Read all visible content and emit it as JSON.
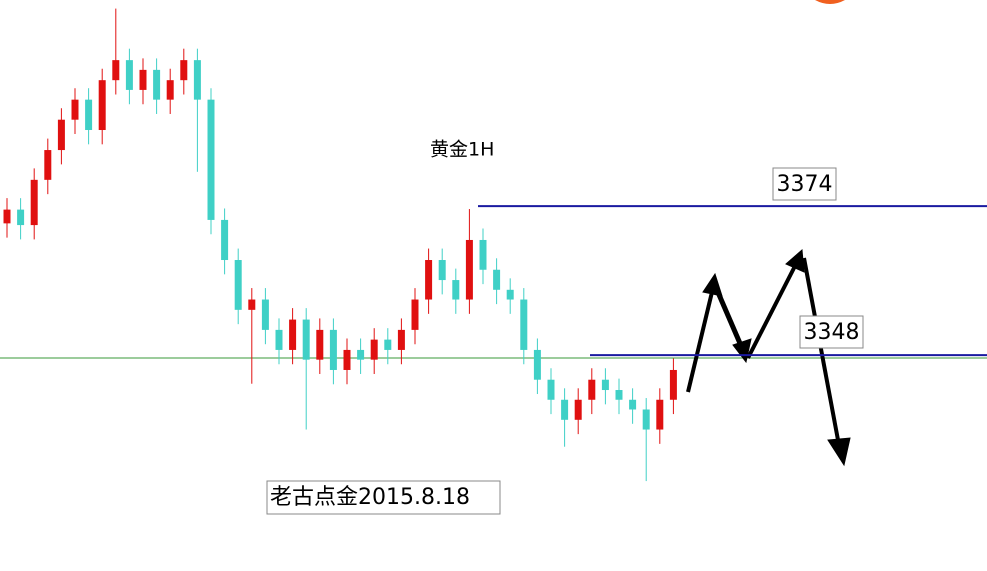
{
  "chart_data": {
    "type": "candlestick",
    "title": "黄金1H",
    "note": "老古点金2015.8.18",
    "ylim": [
      3310.3,
      3410.0
    ],
    "up_color": "#e01010",
    "down_color": "#3fd0c6",
    "levels": [
      3374,
      3348
    ],
    "level_color": "#1a1aa0",
    "price_line": 3347.5,
    "price_line_color": "#3a9a3a",
    "open": [
      3371.0,
      3373.4,
      3370.7,
      3378.6,
      3383.8,
      3389.1,
      3392.6,
      3387.3,
      3396.0,
      3399.5,
      3394.3,
      3397.8,
      3392.6,
      3396.0,
      3399.5,
      3392.6,
      3371.6,
      3364.6,
      3355.9,
      3357.7,
      3352.4,
      3348.9,
      3354.2,
      3347.2,
      3352.4,
      3345.4,
      3348.9,
      3347.2,
      3350.7,
      3348.9,
      3352.4,
      3357.7,
      3364.6,
      3361.1,
      3357.7,
      3368.1,
      3362.9,
      3359.4,
      3357.7,
      3348.9,
      3343.7,
      3340.2,
      3336.7,
      3340.2,
      3343.7,
      3341.9,
      3340.2,
      3338.5,
      3335.0,
      3340.2
    ],
    "high": [
      3375.4,
      3375.4,
      3380.6,
      3385.8,
      3391.1,
      3394.6,
      3394.6,
      3398.0,
      3408.5,
      3401.5,
      3399.8,
      3399.8,
      3398.0,
      3401.5,
      3401.5,
      3394.6,
      3373.6,
      3366.6,
      3359.7,
      3359.7,
      3354.4,
      3356.2,
      3356.2,
      3354.4,
      3354.4,
      3350.9,
      3350.9,
      3352.7,
      3352.7,
      3354.4,
      3359.7,
      3366.6,
      3366.6,
      3363.1,
      3373.5,
      3370.1,
      3364.9,
      3361.4,
      3359.7,
      3350.9,
      3345.7,
      3342.2,
      3342.2,
      3345.7,
      3345.7,
      3343.9,
      3342.2,
      3340.5,
      3342.2,
      3347.4
    ],
    "low": [
      3368.5,
      3368.2,
      3368.2,
      3376.1,
      3381.3,
      3386.6,
      3384.8,
      3384.8,
      3393.5,
      3391.8,
      3391.8,
      3390.1,
      3390.1,
      3393.5,
      3380.0,
      3369.1,
      3362.1,
      3353.4,
      3343.0,
      3349.9,
      3346.4,
      3346.4,
      3335.0,
      3344.7,
      3342.9,
      3342.9,
      3344.7,
      3344.7,
      3346.4,
      3346.4,
      3349.9,
      3355.2,
      3358.6,
      3355.2,
      3355.2,
      3360.4,
      3356.9,
      3355.2,
      3346.4,
      3341.2,
      3337.7,
      3332.0,
      3334.2,
      3337.7,
      3339.4,
      3337.7,
      3336.0,
      3326.0,
      3332.5,
      3337.7
    ],
    "close": [
      3373.4,
      3370.7,
      3378.6,
      3383.8,
      3389.1,
      3392.6,
      3387.3,
      3396.0,
      3399.5,
      3394.3,
      3397.8,
      3392.6,
      3396.0,
      3399.5,
      3392.6,
      3371.6,
      3364.6,
      3355.9,
      3357.7,
      3352.4,
      3348.9,
      3354.2,
      3347.2,
      3352.4,
      3345.4,
      3348.9,
      3347.2,
      3350.7,
      3348.9,
      3352.4,
      3357.7,
      3364.6,
      3361.1,
      3357.7,
      3368.1,
      3362.9,
      3359.4,
      3357.7,
      3348.9,
      3343.7,
      3340.2,
      3336.7,
      3340.2,
      3343.7,
      3341.9,
      3340.2,
      3338.5,
      3335.0,
      3340.2,
      3345.4
    ]
  }
}
